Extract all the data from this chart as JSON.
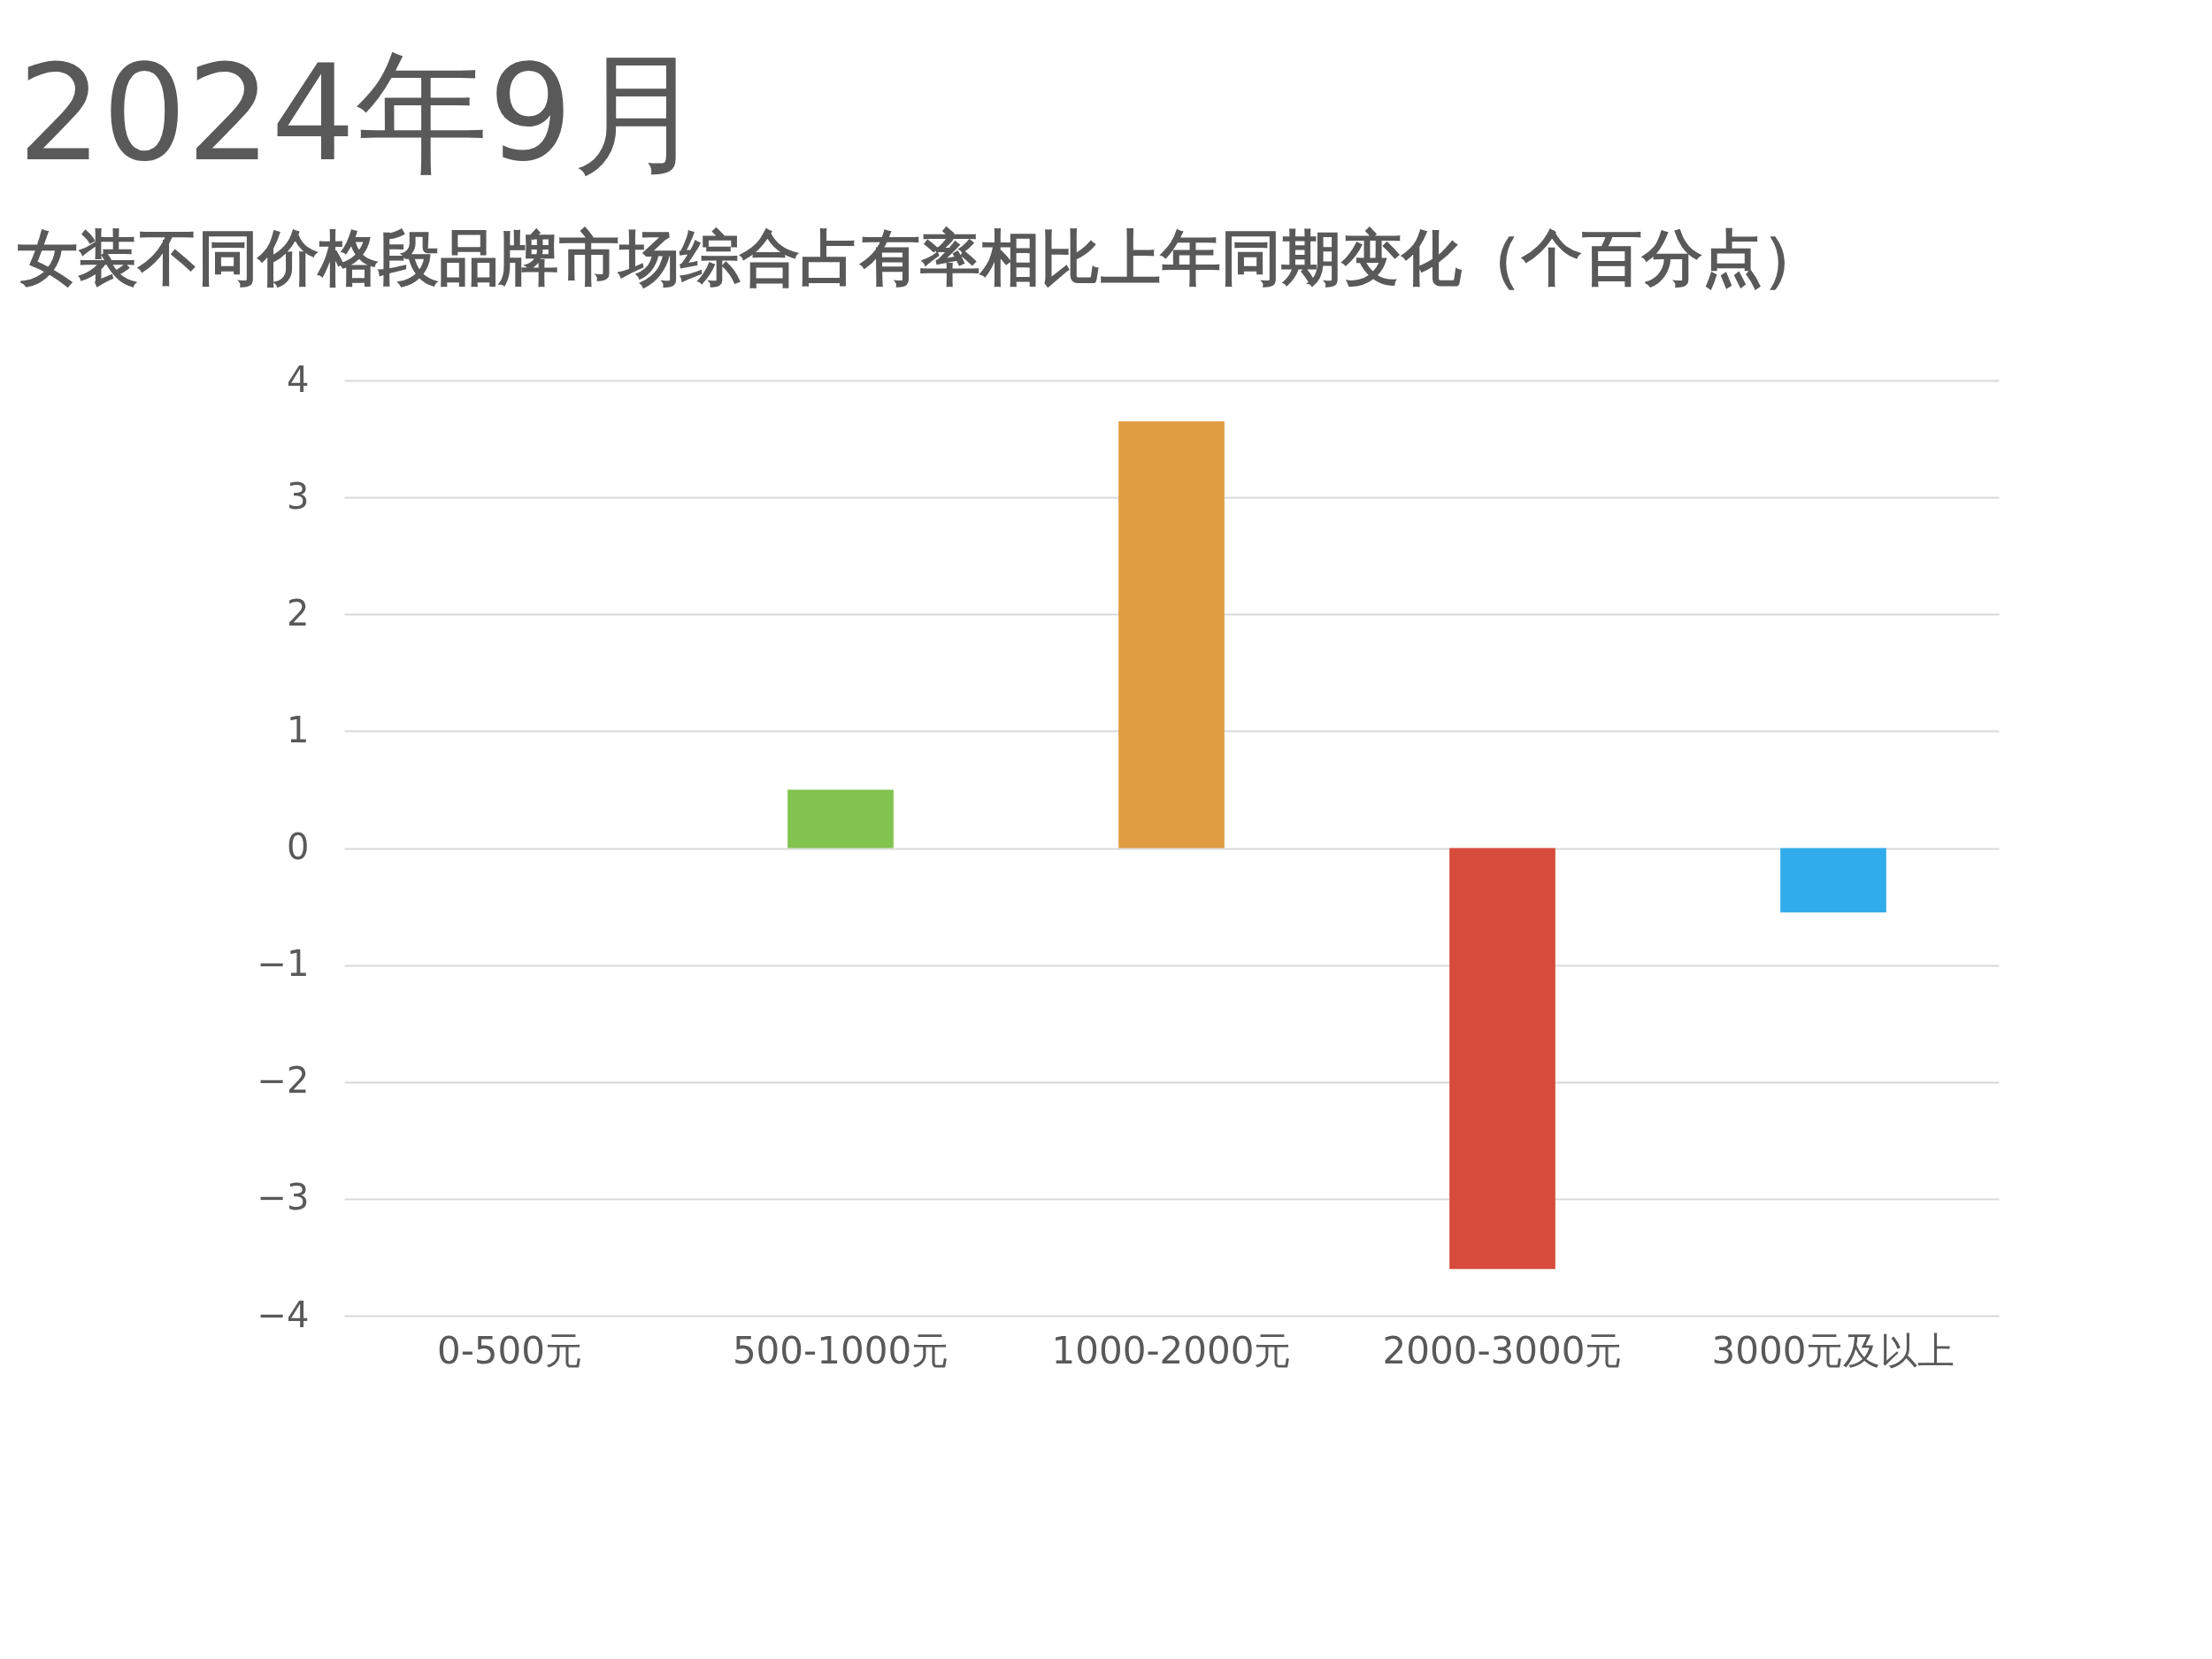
{
  "chart_data": {
    "type": "bar",
    "title": "2024年9月",
    "subtitle": "女装不同价格段品牌市场综合占有率相比上年同期变化（个百分点）",
    "categories": [
      "0-500元",
      "500-1000元",
      "1000-2000元",
      "2000-3000元",
      "3000元及以上"
    ],
    "values": [
      0,
      0.5,
      3.65,
      -3.6,
      -0.55
    ],
    "colors": [
      "#5b9bd5",
      "#83c350",
      "#e09c40",
      "#d64b3b",
      "#31acea"
    ],
    "ylim": [
      -4,
      4
    ],
    "yticks": [
      -4,
      -3,
      -2,
      -1,
      0,
      1,
      2,
      3,
      4
    ],
    "grid": "y"
  }
}
